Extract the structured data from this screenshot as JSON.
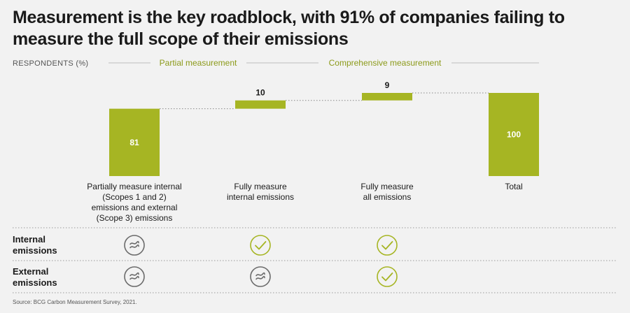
{
  "title": "Measurement is the key roadblock, with 91% of companies failing to measure the full scope of their emissions",
  "headers": {
    "respondents": "RESPONDENTS (%)",
    "partial": "Partial measurement",
    "comprehensive": "Comprehensive measurement"
  },
  "colors": {
    "bar": "#a6b523",
    "header_accent": "#8c9a1a",
    "approx_icon": "#6b6b6b",
    "check_icon": "#a6b523"
  },
  "chart_data": {
    "type": "bar",
    "subtype": "waterfall",
    "categories": [
      "Partially measure internal (Scopes 1 and 2) emissions and external (Scope 3) emissions",
      "Fully measure internal emissions",
      "Fully measure all emissions",
      "Total"
    ],
    "category_lines": [
      [
        "Partially measure internal",
        "(Scopes 1 and 2)",
        "emissions and external",
        "(Scope 3) emissions"
      ],
      [
        "Fully measure",
        "internal emissions"
      ],
      [
        "Fully measure",
        "all emissions"
      ],
      [
        "Total"
      ]
    ],
    "values": [
      81,
      10,
      9,
      100
    ],
    "value_labels": [
      "81",
      "10",
      "9",
      "100"
    ],
    "is_total": [
      false,
      false,
      false,
      true
    ],
    "ylabel": "RESPONDENTS (%)",
    "ylim": [
      0,
      100
    ],
    "grid": false,
    "legend": "none"
  },
  "matrix": {
    "rows": [
      {
        "label": "Internal emissions",
        "lines": [
          "Internal",
          "emissions"
        ],
        "marks": [
          "approx",
          "check",
          "check"
        ]
      },
      {
        "label": "External emissions",
        "lines": [
          "External",
          "emissions"
        ],
        "marks": [
          "approx",
          "approx",
          "check"
        ]
      }
    ]
  },
  "source": "Source: BCG Carbon Measurement Survey, 2021."
}
